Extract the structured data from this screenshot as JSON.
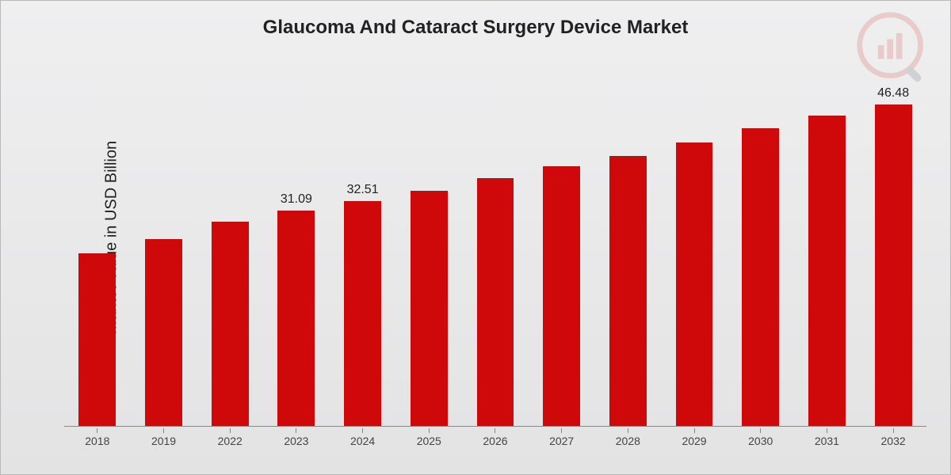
{
  "chart": {
    "type": "bar",
    "title": "Glaucoma And Cataract Surgery Device Market",
    "ylabel": "Market Value in USD Billion",
    "ymax": 50,
    "background_gradient_top": "#efeff0",
    "background_gradient_bottom": "#e3e3e4",
    "border_color": "#b9b9b9",
    "axis_color": "#888888",
    "title_fontsize": 24,
    "ylabel_fontsize": 20,
    "xtick_fontsize": 14,
    "barlabel_fontsize": 16,
    "bar_width_pct": 56,
    "bars": [
      {
        "category": "2018",
        "value": 25.0,
        "label": "",
        "color": "#cf0909"
      },
      {
        "category": "2019",
        "value": 27.0,
        "label": "",
        "color": "#cf0909"
      },
      {
        "category": "2022",
        "value": 29.5,
        "label": "",
        "color": "#cf0909"
      },
      {
        "category": "2023",
        "value": 31.09,
        "label": "31.09",
        "color": "#cf0909"
      },
      {
        "category": "2024",
        "value": 32.51,
        "label": "32.51",
        "color": "#cf0909"
      },
      {
        "category": "2025",
        "value": 34.0,
        "label": "",
        "color": "#cf0909"
      },
      {
        "category": "2026",
        "value": 35.8,
        "label": "",
        "color": "#cf0909"
      },
      {
        "category": "2027",
        "value": 37.5,
        "label": "",
        "color": "#cf0909"
      },
      {
        "category": "2028",
        "value": 39.0,
        "label": "",
        "color": "#cf0909"
      },
      {
        "category": "2029",
        "value": 41.0,
        "label": "",
        "color": "#cf0909"
      },
      {
        "category": "2030",
        "value": 43.0,
        "label": "",
        "color": "#cf0909"
      },
      {
        "category": "2031",
        "value": 44.8,
        "label": "",
        "color": "#cf0909"
      },
      {
        "category": "2032",
        "value": 46.48,
        "label": "46.48",
        "color": "#cf0909"
      }
    ],
    "watermark": {
      "ring_color": "#cf0909",
      "bar_color": "#cf0909",
      "lens_color": "#3a3a3a"
    }
  }
}
